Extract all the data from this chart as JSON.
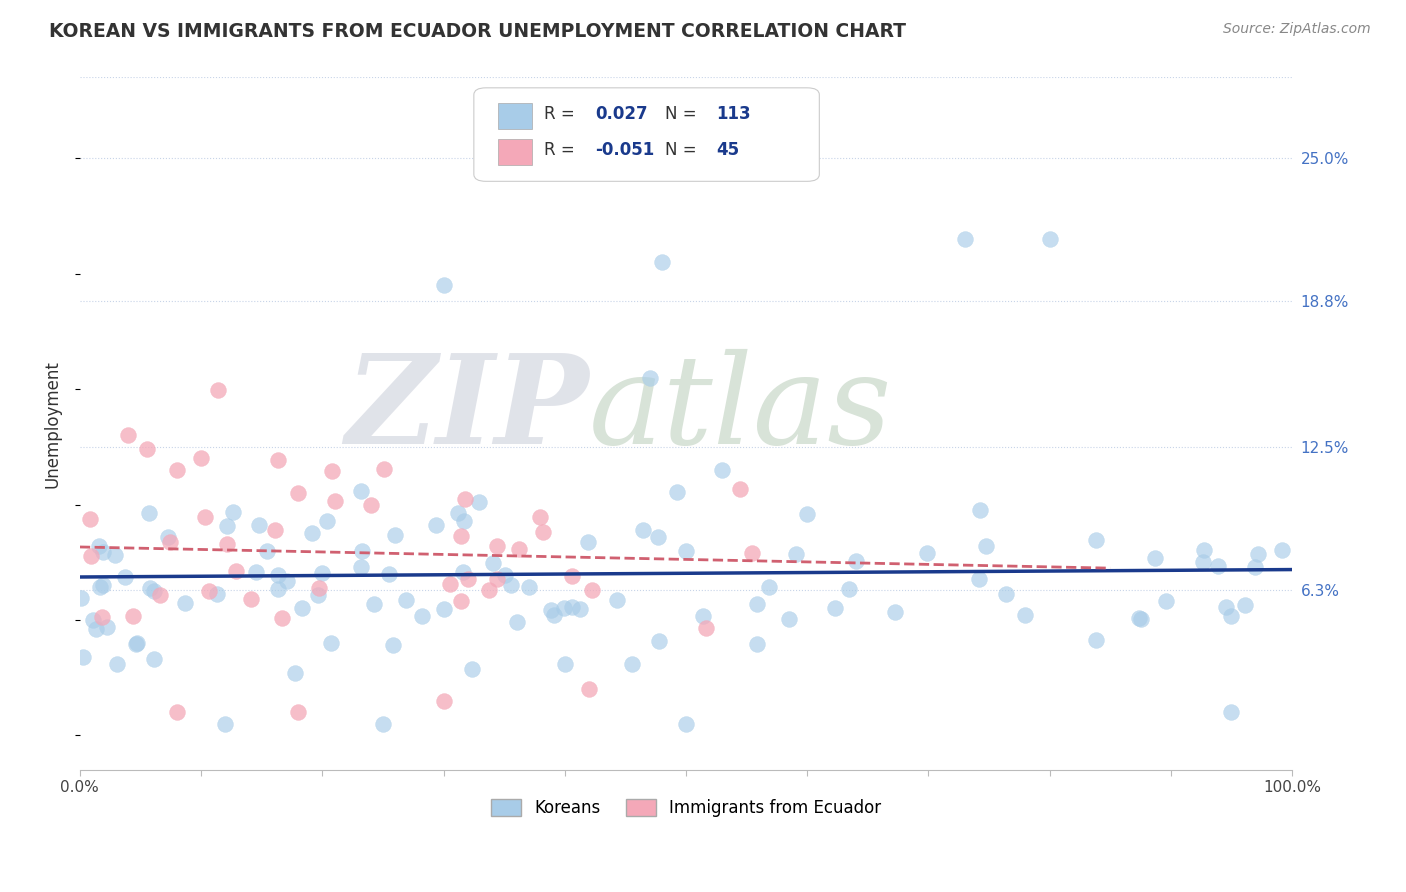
{
  "title": "KOREAN VS IMMIGRANTS FROM ECUADOR UNEMPLOYMENT CORRELATION CHART",
  "source_text": "Source: ZipAtlas.com",
  "ylabel": "Unemployment",
  "watermark_zip": "ZIP",
  "watermark_atlas": "atlas",
  "r_korean": 0.027,
  "n_korean": 113,
  "r_ecuador": -0.051,
  "n_ecuador": 45,
  "xlim": [
    0,
    1
  ],
  "ylim": [
    -0.015,
    0.285
  ],
  "yticks": [
    0.063,
    0.125,
    0.188,
    0.25
  ],
  "ytick_labels": [
    "6.3%",
    "12.5%",
    "18.8%",
    "25.0%"
  ],
  "blue_color": "#a8cce8",
  "pink_color": "#f4a8b8",
  "blue_line_color": "#1a3a8c",
  "pink_line_color": "#d06070",
  "background_color": "#ffffff",
  "grid_color": "#c8d4e8",
  "title_color": "#333333",
  "watermark_color_zip": "#c8d0dc",
  "watermark_color_atlas": "#c8d8c8",
  "ylabel_color": "#333333",
  "right_axis_label_color": "#4472c4",
  "legend_r_color": "#1a3a8c",
  "legend_n_color": "#1a3a8c"
}
